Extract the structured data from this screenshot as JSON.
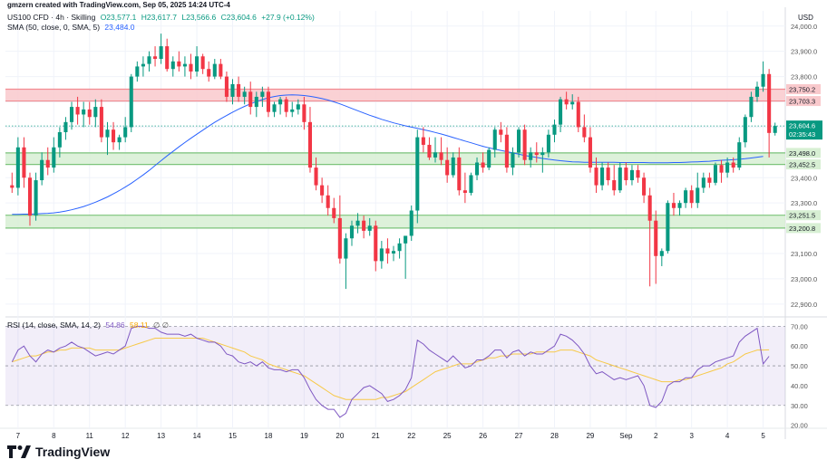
{
  "header": {
    "author_line": "gmzern created with TradingView.com, Sep 05, 2025 14:24 UTC-4",
    "symbol": "US100 CFD · 4h · Skilling",
    "open": "O23,577.1",
    "high": "H23,617.7",
    "low": "L23,566.6",
    "close": "C23,604.6",
    "change": "+27.9 (+0.12%)",
    "sma_label": "SMA (50, close, 0, SMA, 5)",
    "sma_value": "23,484.0",
    "currency": "USD"
  },
  "rsi_legend": {
    "label": "RSI (14, close, SMA, 14, 2)",
    "rsi_value": "54.86",
    "sma_value": "58.11",
    "extra": "∅ ∅"
  },
  "price_tags": {
    "last_price": "23,604.6",
    "countdown": "02:35:43"
  },
  "brand": {
    "name": "TradingView"
  },
  "colors": {
    "up": "#089981",
    "down": "#f23645",
    "sma": "#2962ff",
    "rsi": "#7e57c2",
    "rsi_sma": "#f7c948",
    "resistance_fill": "#f9c9cc",
    "support_fill": "#d7efd3"
  },
  "chart_data": {
    "type": "candlestick",
    "title": "US100 CFD · 4h · Skilling",
    "ylabel": "USD",
    "ylim": [
      22860,
      24060
    ],
    "y_ticks": [
      22900,
      23000,
      23100,
      23200,
      23300,
      23400,
      23500,
      23600,
      23700,
      23800,
      23900,
      24000
    ],
    "y_tick_labels": [
      "22,900.0",
      "23,000.0",
      "23,100.0",
      "23,200.0",
      "23,300.0",
      "23,400.0",
      "23,500.0",
      "23,600.0",
      "23,700.0",
      "23,800.0",
      "23,900.0",
      "24,000.0"
    ],
    "x_ticks": [
      {
        "label": "7",
        "bar": 1
      },
      {
        "label": "8",
        "bar": 7
      },
      {
        "label": "11",
        "bar": 13
      },
      {
        "label": "12",
        "bar": 19
      },
      {
        "label": "13",
        "bar": 25
      },
      {
        "label": "14",
        "bar": 31
      },
      {
        "label": "15",
        "bar": 37
      },
      {
        "label": "18",
        "bar": 43
      },
      {
        "label": "19",
        "bar": 49
      },
      {
        "label": "20",
        "bar": 55
      },
      {
        "label": "21",
        "bar": 61
      },
      {
        "label": "22",
        "bar": 67
      },
      {
        "label": "25",
        "bar": 73
      },
      {
        "label": "26",
        "bar": 79
      },
      {
        "label": "27",
        "bar": 85
      },
      {
        "label": "28",
        "bar": 91
      },
      {
        "label": "29",
        "bar": 97
      },
      {
        "label": "Sep",
        "bar": 103
      },
      {
        "label": "2",
        "bar": 108
      },
      {
        "label": "3",
        "bar": 114
      },
      {
        "label": "4",
        "bar": 120
      },
      {
        "label": "5",
        "bar": 126
      }
    ],
    "zones": [
      {
        "name": "resistance",
        "upper": 23750.2,
        "lower": 23703.3,
        "upper_label": "23,750.2",
        "lower_label": "23,703.3",
        "kind": "resistance"
      },
      {
        "name": "support-1",
        "upper": 23498.0,
        "lower": 23452.5,
        "upper_label": "23,498.0",
        "lower_label": "23,452.5",
        "kind": "support"
      },
      {
        "name": "support-2",
        "upper": 23251.5,
        "lower": 23200.8,
        "upper_label": "23,251.5",
        "lower_label": "23,200.8",
        "kind": "support"
      }
    ],
    "last_price": 23604.6,
    "ohlc": [
      [
        23370,
        23420,
        23340,
        23360
      ],
      [
        23360,
        23560,
        23330,
        23520
      ],
      [
        23520,
        23560,
        23360,
        23400
      ],
      [
        23400,
        23420,
        23210,
        23250
      ],
      [
        23250,
        23420,
        23230,
        23390
      ],
      [
        23390,
        23500,
        23370,
        23470
      ],
      [
        23470,
        23520,
        23410,
        23440
      ],
      [
        23440,
        23560,
        23420,
        23520
      ],
      [
        23520,
        23600,
        23480,
        23580
      ],
      [
        23580,
        23640,
        23550,
        23620
      ],
      [
        23620,
        23700,
        23590,
        23680
      ],
      [
        23680,
        23720,
        23610,
        23650
      ],
      [
        23650,
        23700,
        23600,
        23670
      ],
      [
        23670,
        23700,
        23610,
        23640
      ],
      [
        23640,
        23710,
        23600,
        23680
      ],
      [
        23680,
        23710,
        23540,
        23560
      ],
      [
        23560,
        23620,
        23490,
        23590
      ],
      [
        23590,
        23620,
        23510,
        23540
      ],
      [
        23540,
        23570,
        23510,
        23560
      ],
      [
        23560,
        23640,
        23540,
        23600
      ],
      [
        23600,
        23810,
        23580,
        23800
      ],
      [
        23800,
        23860,
        23780,
        23840
      ],
      [
        23840,
        23880,
        23800,
        23850
      ],
      [
        23850,
        23900,
        23820,
        23880
      ],
      [
        23880,
        23920,
        23840,
        23870
      ],
      [
        23870,
        23970,
        23850,
        23920
      ],
      [
        23920,
        23950,
        23820,
        23830
      ],
      [
        23830,
        23880,
        23800,
        23860
      ],
      [
        23860,
        23900,
        23820,
        23840
      ],
      [
        23840,
        23880,
        23800,
        23850
      ],
      [
        23850,
        23890,
        23790,
        23820
      ],
      [
        23820,
        23920,
        23800,
        23880
      ],
      [
        23880,
        23890,
        23810,
        23830
      ],
      [
        23830,
        23860,
        23780,
        23800
      ],
      [
        23800,
        23870,
        23790,
        23850
      ],
      [
        23850,
        23870,
        23790,
        23800
      ],
      [
        23800,
        23820,
        23700,
        23720
      ],
      [
        23720,
        23790,
        23690,
        23770
      ],
      [
        23770,
        23800,
        23700,
        23720
      ],
      [
        23720,
        23760,
        23690,
        23740
      ],
      [
        23740,
        23780,
        23650,
        23680
      ],
      [
        23680,
        23740,
        23640,
        23720
      ],
      [
        23720,
        23760,
        23680,
        23740
      ],
      [
        23740,
        23760,
        23640,
        23660
      ],
      [
        23660,
        23700,
        23640,
        23690
      ],
      [
        23690,
        23720,
        23650,
        23710
      ],
      [
        23710,
        23720,
        23640,
        23660
      ],
      [
        23660,
        23700,
        23640,
        23670
      ],
      [
        23670,
        23710,
        23650,
        23690
      ],
      [
        23690,
        23720,
        23590,
        23620
      ],
      [
        23620,
        23680,
        23420,
        23440
      ],
      [
        23440,
        23480,
        23350,
        23370
      ],
      [
        23370,
        23400,
        23300,
        23330
      ],
      [
        23330,
        23370,
        23250,
        23280
      ],
      [
        23280,
        23320,
        23220,
        23240
      ],
      [
        23240,
        23330,
        23060,
        23080
      ],
      [
        23080,
        23180,
        22960,
        23160
      ],
      [
        23160,
        23230,
        23130,
        23210
      ],
      [
        23210,
        23260,
        23180,
        23230
      ],
      [
        23230,
        23250,
        23160,
        23190
      ],
      [
        23190,
        23240,
        23170,
        23210
      ],
      [
        23210,
        23230,
        23030,
        23070
      ],
      [
        23070,
        23150,
        23040,
        23120
      ],
      [
        23120,
        23160,
        23060,
        23100
      ],
      [
        23100,
        23130,
        23070,
        23110
      ],
      [
        23110,
        23160,
        23080,
        23140
      ],
      [
        23140,
        23170,
        23000,
        23170
      ],
      [
        23170,
        23290,
        23150,
        23270
      ],
      [
        23270,
        23590,
        23220,
        23560
      ],
      [
        23560,
        23600,
        23500,
        23530
      ],
      [
        23530,
        23560,
        23470,
        23480
      ],
      [
        23480,
        23560,
        23460,
        23500
      ],
      [
        23500,
        23560,
        23450,
        23470
      ],
      [
        23470,
        23520,
        23380,
        23410
      ],
      [
        23410,
        23500,
        23400,
        23480
      ],
      [
        23480,
        23520,
        23330,
        23350
      ],
      [
        23350,
        23420,
        23300,
        23340
      ],
      [
        23340,
        23420,
        23330,
        23410
      ],
      [
        23410,
        23480,
        23390,
        23460
      ],
      [
        23460,
        23500,
        23420,
        23440
      ],
      [
        23440,
        23520,
        23430,
        23510
      ],
      [
        23510,
        23600,
        23480,
        23590
      ],
      [
        23590,
        23620,
        23540,
        23570
      ],
      [
        23570,
        23600,
        23420,
        23440
      ],
      [
        23440,
        23520,
        23410,
        23500
      ],
      [
        23500,
        23600,
        23480,
        23590
      ],
      [
        23590,
        23610,
        23450,
        23470
      ],
      [
        23470,
        23520,
        23440,
        23500
      ],
      [
        23500,
        23540,
        23460,
        23490
      ],
      [
        23490,
        23520,
        23420,
        23500
      ],
      [
        23500,
        23590,
        23480,
        23570
      ],
      [
        23570,
        23630,
        23540,
        23610
      ],
      [
        23610,
        23720,
        23580,
        23710
      ],
      [
        23710,
        23740,
        23670,
        23690
      ],
      [
        23690,
        23730,
        23670,
        23700
      ],
      [
        23700,
        23720,
        23580,
        23600
      ],
      [
        23600,
        23650,
        23540,
        23560
      ],
      [
        23560,
        23600,
        23420,
        23440
      ],
      [
        23440,
        23480,
        23340,
        23370
      ],
      [
        23370,
        23460,
        23350,
        23440
      ],
      [
        23440,
        23460,
        23370,
        23390
      ],
      [
        23390,
        23450,
        23330,
        23350
      ],
      [
        23350,
        23460,
        23340,
        23440
      ],
      [
        23440,
        23460,
        23370,
        23390
      ],
      [
        23390,
        23450,
        23370,
        23430
      ],
      [
        23430,
        23450,
        23380,
        23400
      ],
      [
        23400,
        23420,
        23300,
        23330
      ],
      [
        23330,
        23360,
        22970,
        23230
      ],
      [
        23230,
        23270,
        22980,
        23090
      ],
      [
        23090,
        23120,
        23050,
        23110
      ],
      [
        23110,
        23310,
        23100,
        23300
      ],
      [
        23300,
        23340,
        23250,
        23280
      ],
      [
        23280,
        23310,
        23250,
        23300
      ],
      [
        23300,
        23360,
        23280,
        23350
      ],
      [
        23350,
        23370,
        23280,
        23300
      ],
      [
        23300,
        23420,
        23280,
        23360
      ],
      [
        23360,
        23420,
        23340,
        23400
      ],
      [
        23400,
        23420,
        23360,
        23380
      ],
      [
        23380,
        23460,
        23370,
        23450
      ],
      [
        23450,
        23470,
        23380,
        23420
      ],
      [
        23420,
        23480,
        23400,
        23460
      ],
      [
        23460,
        23480,
        23420,
        23440
      ],
      [
        23440,
        23560,
        23430,
        23540
      ],
      [
        23540,
        23650,
        23520,
        23640
      ],
      [
        23640,
        23740,
        23620,
        23720
      ],
      [
        23720,
        23780,
        23700,
        23760
      ],
      [
        23760,
        23860,
        23740,
        23810
      ],
      [
        23810,
        23830,
        23480,
        23577
      ],
      [
        23577.1,
        23617.7,
        23566.6,
        23604.6
      ]
    ],
    "sma50": [
      23255,
      23255,
      23256,
      23256,
      23257,
      23258,
      23259,
      23261,
      23264,
      23268,
      23273,
      23279,
      23286,
      23294,
      23303,
      23313,
      23324,
      23336,
      23349,
      23363,
      23378,
      23394,
      23411,
      23429,
      23448,
      23467,
      23486,
      23504,
      23522,
      23539,
      23556,
      23572,
      23588,
      23604,
      23619,
      23633,
      23646,
      23659,
      23671,
      23682,
      23692,
      23701,
      23709,
      23716,
      23721,
      23725,
      23727,
      23728,
      23727,
      23725,
      23722,
      23718,
      23713,
      23707,
      23700,
      23692,
      23683,
      23674,
      23665,
      23656,
      23647,
      23639,
      23631,
      23624,
      23617,
      23611,
      23605,
      23600,
      23595,
      23590,
      23585,
      23579,
      23573,
      23566,
      23559,
      23552,
      23545,
      23538,
      23531,
      23524,
      23518,
      23513,
      23508,
      23503,
      23498,
      23493,
      23488,
      23484,
      23480,
      23476,
      23473,
      23470,
      23467,
      23465,
      23463,
      23462,
      23461,
      23461,
      23461,
      23461,
      23461,
      23461,
      23460,
      23460,
      23460,
      23460,
      23460,
      23459,
      23459,
      23459,
      23459,
      23460,
      23460,
      23461,
      23462,
      23463,
      23464,
      23465,
      23467,
      23469,
      23470,
      23471,
      23473,
      23475,
      23478,
      23481,
      23484
    ],
    "rsi": {
      "ylim": [
        18,
        72
      ],
      "y_ticks": [
        20,
        30,
        40,
        50,
        60,
        70
      ],
      "y_tick_labels": [
        "20.00",
        "30.00",
        "40.00",
        "50.00",
        "60.00",
        "70.00"
      ],
      "levels": {
        "upper": 70,
        "middle": 50,
        "lower": 30
      },
      "rsi_values": [
        52,
        58,
        60,
        55,
        52,
        56,
        58,
        57,
        59,
        60,
        62,
        60,
        59,
        57,
        55,
        56,
        57,
        56,
        58,
        60,
        69,
        70,
        70,
        69,
        69,
        67,
        66,
        66,
        66,
        65,
        66,
        64,
        63,
        62,
        62,
        60,
        56,
        55,
        52,
        51,
        52,
        50,
        52,
        49,
        48,
        48,
        47,
        48,
        48,
        44,
        38,
        33,
        30,
        28,
        28,
        24,
        26,
        33,
        36,
        39,
        40,
        38,
        36,
        32,
        33,
        35,
        38,
        44,
        63,
        61,
        58,
        56,
        54,
        52,
        55,
        52,
        49,
        50,
        53,
        53,
        55,
        58,
        58,
        54,
        57,
        58,
        55,
        57,
        56,
        56,
        58,
        60,
        66,
        65,
        63,
        60,
        56,
        50,
        46,
        47,
        45,
        43,
        44,
        43,
        44,
        45,
        40,
        30,
        29,
        32,
        40,
        42,
        42,
        44,
        44,
        48,
        50,
        50,
        52,
        53,
        54,
        55,
        62,
        65,
        67,
        69,
        51,
        54.86
      ],
      "rsi_sma_values": [
        52,
        53,
        54,
        55,
        55,
        56,
        57,
        57,
        58,
        58,
        59,
        59,
        59,
        59,
        58,
        58,
        58,
        58,
        58,
        59,
        60,
        61,
        62,
        63,
        64,
        64,
        64,
        64,
        64,
        64,
        64,
        64,
        64,
        63,
        62,
        61,
        60,
        59,
        58,
        57,
        55,
        54,
        53,
        51,
        50,
        49,
        48,
        47,
        46,
        45,
        43,
        41,
        39,
        37,
        35,
        34,
        33,
        33,
        33,
        33,
        33,
        33,
        34,
        34,
        35,
        36,
        37,
        39,
        41,
        43,
        45,
        47,
        48,
        49,
        50,
        51,
        51,
        51,
        52,
        53,
        54,
        54,
        55,
        55,
        56,
        56,
        56,
        56,
        57,
        57,
        57,
        57,
        58,
        58,
        58,
        57,
        56,
        55,
        53,
        52,
        51,
        50,
        49,
        48,
        47,
        46,
        45,
        44,
        43,
        42,
        42,
        42,
        43,
        43,
        44,
        45,
        46,
        47,
        48,
        49,
        51,
        52,
        54,
        56,
        57,
        58,
        58,
        58.11
      ]
    }
  }
}
